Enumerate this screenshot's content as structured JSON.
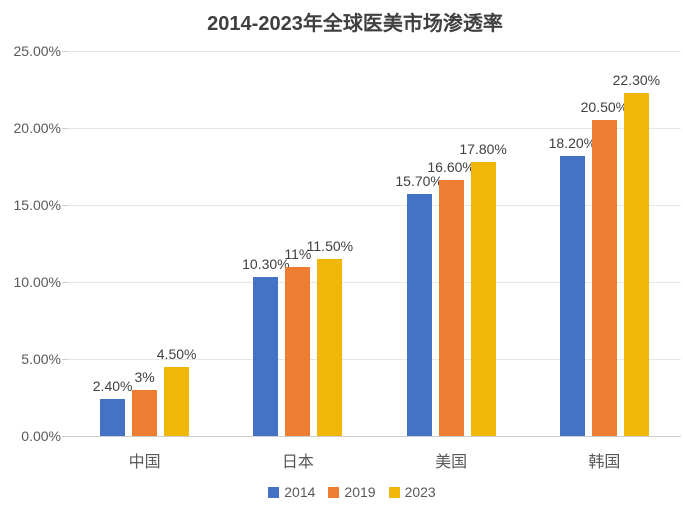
{
  "chart_data": {
    "type": "bar",
    "title": "2014-2023年全球医美市场渗透率",
    "categories": [
      "中国",
      "日本",
      "美国",
      "韩国"
    ],
    "series": [
      {
        "name": "2014",
        "color": "#4472C4",
        "values": [
          2.4,
          10.3,
          15.7,
          18.2
        ],
        "labels": [
          "2.40%",
          "10.30%",
          "15.70%",
          "18.20%"
        ]
      },
      {
        "name": "2019",
        "color": "#ED7D31",
        "values": [
          3.0,
          11.0,
          16.6,
          20.5
        ],
        "labels": [
          "3%",
          "11%",
          "16.60%",
          "20.50%"
        ]
      },
      {
        "name": "2023",
        "color": "#F0B708",
        "values": [
          4.5,
          11.5,
          17.8,
          22.3
        ],
        "labels": [
          "4.50%",
          "11.50%",
          "17.80%",
          "22.30%"
        ]
      }
    ],
    "y_axis": {
      "min": 0,
      "max": 25,
      "step": 5,
      "tick_labels": [
        "0.00%",
        "5.00%",
        "10.00%",
        "15.00%",
        "20.00%",
        "25.00%"
      ]
    },
    "grid": true,
    "legend_position": "bottom",
    "colors": {
      "title_text": "#404040",
      "axis_text": "#595959",
      "data_label_text": "#404040",
      "gridline": "#e6e6e6",
      "axis_line": "#cfcfcf",
      "background": "#ffffff"
    }
  }
}
